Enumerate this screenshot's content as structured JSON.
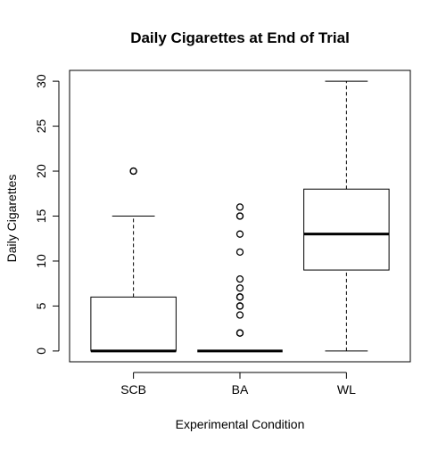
{
  "chart_data": {
    "type": "box",
    "title": "Daily Cigarettes at End of Trial",
    "xlabel": "Experimental Condition",
    "ylabel": "Daily Cigarettes",
    "ylim": [
      -1.2,
      31.2
    ],
    "yticks": [
      0,
      5,
      10,
      15,
      20,
      25,
      30
    ],
    "categories": [
      "SCB",
      "BA",
      "WL"
    ],
    "boxes": [
      {
        "name": "SCB",
        "whisker_low": 0,
        "q1": 0,
        "median": 0,
        "q3": 6,
        "whisker_high": 15,
        "outliers": [
          20,
          20
        ]
      },
      {
        "name": "BA",
        "whisker_low": 0,
        "q1": 0,
        "median": 0,
        "q3": 0,
        "whisker_high": 0,
        "outliers": [
          2,
          2,
          4,
          5,
          5,
          6,
          6,
          7,
          8,
          11,
          13,
          15,
          15,
          16
        ]
      },
      {
        "name": "WL",
        "whisker_low": 0,
        "q1": 9,
        "median": 13,
        "q3": 18,
        "whisker_high": 30,
        "outliers": []
      }
    ],
    "grid": false,
    "legend": "none"
  }
}
